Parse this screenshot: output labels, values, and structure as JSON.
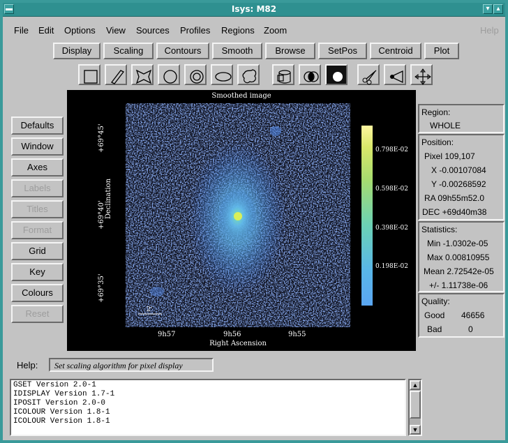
{
  "window": {
    "title": "Isys: M82"
  },
  "menubar": {
    "items": [
      "File",
      "Edit",
      "Options",
      "View",
      "Sources",
      "Profiles",
      "Regions",
      "Zoom"
    ],
    "help": "Help"
  },
  "toolbar": {
    "buttons": [
      "Display",
      "Scaling",
      "Contours",
      "Smooth",
      "Browse",
      "SetPos",
      "Centroid",
      "Plot"
    ]
  },
  "tools": [
    "rectangle-icon",
    "diamond-icon",
    "bowtie-icon",
    "circle-icon",
    "annulus-icon",
    "ellipse-icon",
    "freehand-icon",
    "cylinder-icon",
    "venn-icon",
    "filled-circle-icon",
    "scissors-icon",
    "eye-icon",
    "move-icon"
  ],
  "side_buttons": [
    {
      "label": "Defaults",
      "enabled": true
    },
    {
      "label": "Window",
      "enabled": true
    },
    {
      "label": "Axes",
      "enabled": true
    },
    {
      "label": "Labels",
      "enabled": false
    },
    {
      "label": "Titles",
      "enabled": false
    },
    {
      "label": "Format",
      "enabled": false
    },
    {
      "label": "Grid",
      "enabled": true
    },
    {
      "label": "Key",
      "enabled": true
    },
    {
      "label": "Colours",
      "enabled": true
    },
    {
      "label": "Reset",
      "enabled": false
    }
  ],
  "image": {
    "title": "Smoothed image",
    "xlabel": "Right Ascension",
    "ylabel": "Declination",
    "xticks": [
      "9h57",
      "9h56",
      "9h55"
    ],
    "yticks": [
      "+69°45'",
      "+69°40'",
      "+69°35'"
    ],
    "scalebar": "2'",
    "colorbar_ticks": [
      "0.798E-02",
      "0.598E-02",
      "0.398E-02",
      "0.198E-02"
    ]
  },
  "region": {
    "label": "Region:",
    "value": "WHOLE"
  },
  "position": {
    "label": "Position:",
    "pixel": "Pixel  109,107",
    "x": "X -0.00107084",
    "y": "Y -0.00268592",
    "ra": "RA  09h55m52.0",
    "dec": "DEC  +69d40m38"
  },
  "statistics": {
    "label": "Statistics:",
    "min": "Min  -1.0302e-05",
    "max": "Max  0.00810955",
    "mean": "Mean 2.72542e-05",
    "pm": "+/- 1.11738e-06"
  },
  "quality": {
    "label": "Quality:",
    "good_label": "Good",
    "good": "46656",
    "bad_label": "Bad",
    "bad": "0"
  },
  "help": {
    "label": "Help:",
    "text": "Set scaling algorithm for pixel display"
  },
  "log": [
    "GSET Version 2.0-1",
    "IDISPLAY Version 1.7-1",
    "IPOSIT Version 2.0-0",
    "ICOLOUR Version 1.8-1",
    "ICOLOUR Version 1.8-1"
  ],
  "colors": {
    "title_bar": "#2f9090",
    "panel": "#c3c3c3",
    "noise": "#3d5fb0"
  }
}
